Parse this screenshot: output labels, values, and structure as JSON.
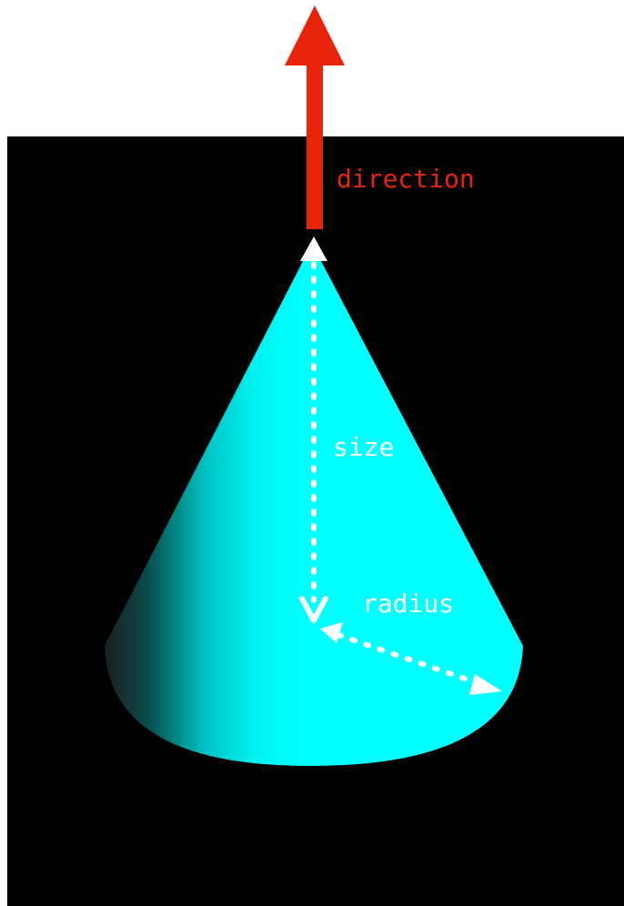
{
  "labels": {
    "direction": "direction",
    "size": "size",
    "radius": "radius"
  },
  "colors": {
    "background": "#000000",
    "page": "#ffffff",
    "cone": "#00ffff",
    "cone_shadow": "#1a1a1a",
    "direction_arrow": "#e8250a",
    "annotation": "#ffffff"
  }
}
